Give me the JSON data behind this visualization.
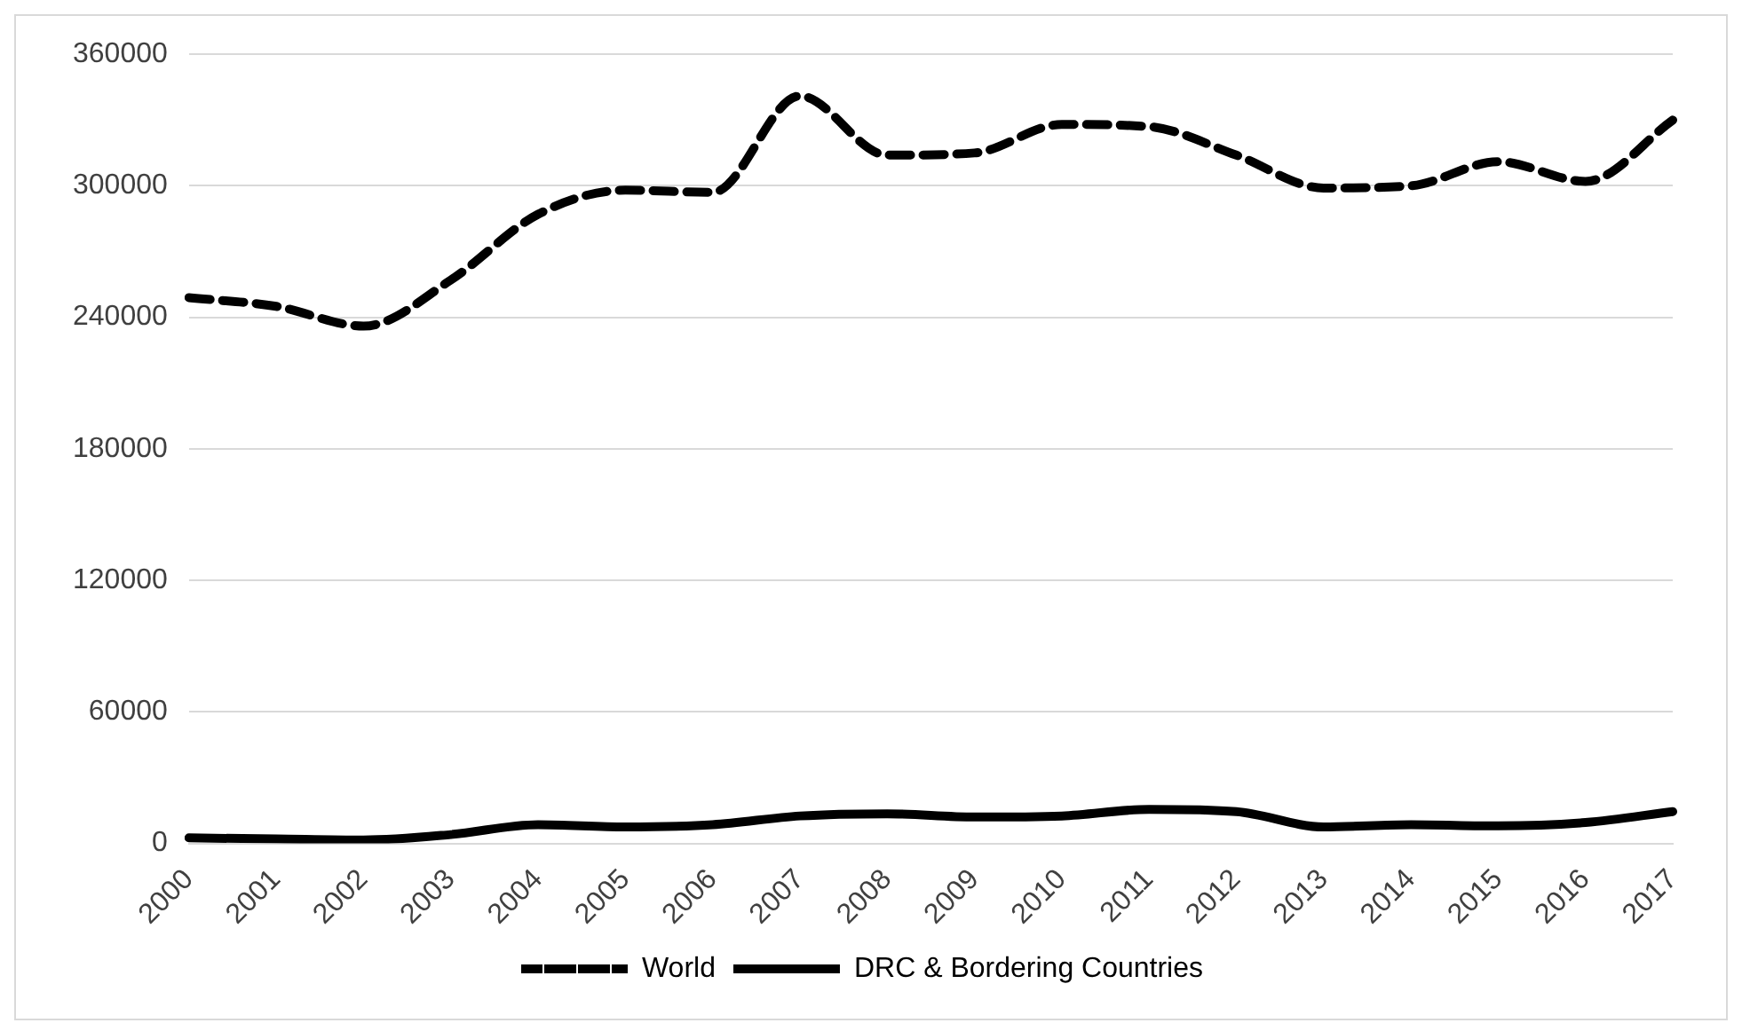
{
  "chart_data": {
    "type": "line",
    "categories": [
      "2000",
      "2001",
      "2002",
      "2003",
      "2004",
      "2005",
      "2006",
      "2007",
      "2008",
      "2009",
      "2010",
      "2011",
      "2012",
      "2013",
      "2014",
      "2015",
      "2016",
      "2017"
    ],
    "series": [
      {
        "name": "World",
        "color": "#000000",
        "line_style": "dashed",
        "values": [
          249000,
          245000,
          236000,
          257000,
          287000,
          298000,
          297000,
          341000,
          314000,
          315000,
          328000,
          327000,
          314000,
          299000,
          300000,
          311000,
          302000,
          330000
        ]
      },
      {
        "name": "DRC & Bordering Countries",
        "color": "#000000",
        "line_style": "solid",
        "values": [
          2500,
          2000,
          1500,
          4000,
          8500,
          7500,
          8500,
          12500,
          13500,
          12000,
          12500,
          15500,
          14500,
          7500,
          8500,
          8000,
          9500,
          14500
        ]
      }
    ],
    "ylim": [
      0,
      360000
    ],
    "yticks": [
      0,
      60000,
      120000,
      180000,
      240000,
      300000,
      360000
    ],
    "grid": "y",
    "legend": "bottom",
    "marker": "none"
  }
}
